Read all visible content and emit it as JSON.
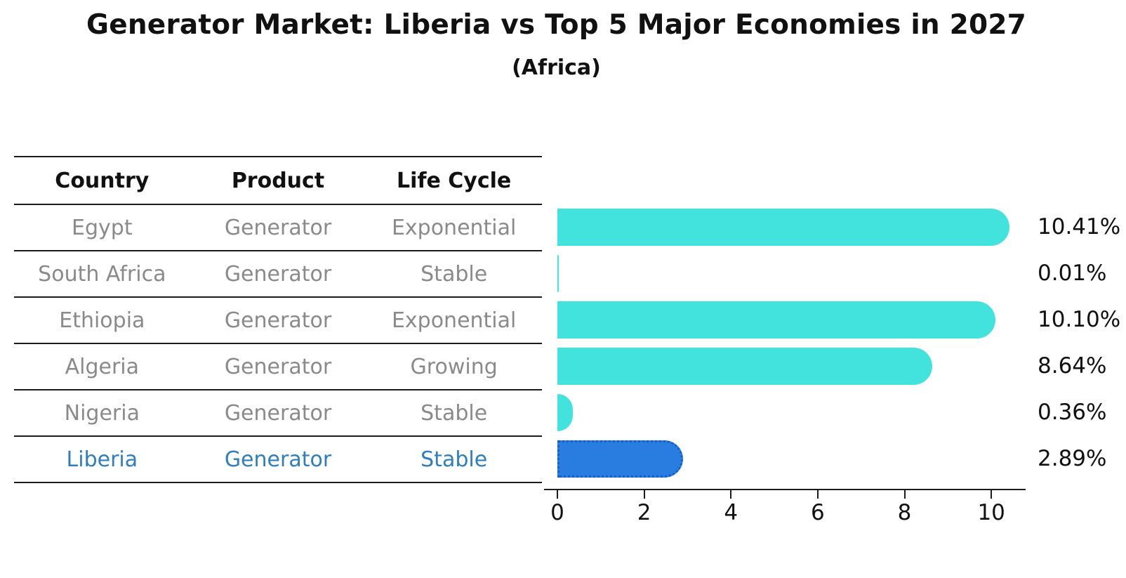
{
  "title": "Generator Market: Liberia vs Top 5 Major Economies in 2027",
  "subtitle": "(Africa)",
  "table": {
    "headers": [
      "Country",
      "Product",
      "Life Cycle"
    ],
    "rows": [
      {
        "country": "Egypt",
        "product": "Generator",
        "life_cycle": "Exponential"
      },
      {
        "country": "South Africa",
        "product": "Generator",
        "life_cycle": "Stable"
      },
      {
        "country": "Ethiopia",
        "product": "Generator",
        "life_cycle": "Exponential"
      },
      {
        "country": "Algeria",
        "product": "Generator",
        "life_cycle": "Growing"
      },
      {
        "country": "Nigeria",
        "product": "Generator",
        "life_cycle": "Stable"
      },
      {
        "country": "Liberia",
        "product": "Generator",
        "life_cycle": "Stable"
      }
    ],
    "highlight_row": "Liberia"
  },
  "chart_data": {
    "type": "bar",
    "orientation": "horizontal",
    "title": "Generator Market: Liberia vs Top 5 Major Economies in 2027",
    "subtitle": "(Africa)",
    "categories": [
      "Egypt",
      "South Africa",
      "Ethiopia",
      "Algeria",
      "Nigeria",
      "Liberia"
    ],
    "values": [
      10.41,
      0.01,
      10.1,
      8.64,
      0.36,
      2.89
    ],
    "value_labels": [
      "10.41%",
      "0.01%",
      "10.10%",
      "8.64%",
      "0.36%",
      "2.89%"
    ],
    "xlabel": "",
    "ylabel": "",
    "xlim": [
      0,
      11
    ],
    "xticks": [
      0,
      2,
      4,
      6,
      8,
      10
    ],
    "grid": false,
    "legend": false,
    "highlight_index": 5,
    "colors": {
      "bar": "#42e3dc",
      "highlight_bar": "#2a7de0",
      "highlight_border": "#155fc8",
      "highlight_text": "#2f7ebf",
      "table_text": "#8a8a8a",
      "text": "#111111",
      "axis": "#1c1c1c",
      "background": "#ffffff"
    }
  }
}
